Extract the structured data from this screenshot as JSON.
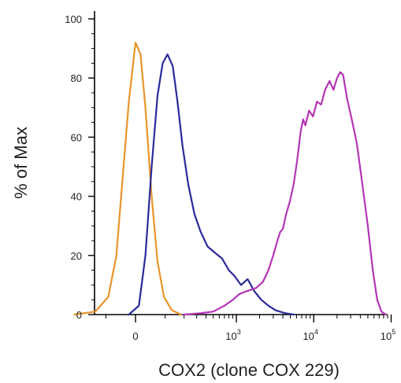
{
  "chart_data": {
    "type": "line",
    "title": "",
    "xlabel": "COX2 (clone COX 229)",
    "ylabel": "% of Max",
    "x_scale": "biexponential",
    "x_ticks": [
      {
        "value": 0,
        "base": "0",
        "exp": ""
      },
      {
        "value": 1000,
        "base": "10",
        "exp": "3"
      },
      {
        "value": 10000,
        "base": "10",
        "exp": "4"
      },
      {
        "value": 100000,
        "base": "10",
        "exp": "5"
      }
    ],
    "y_ticks": [
      0,
      20,
      40,
      60,
      80,
      100
    ],
    "ylim": [
      0,
      100
    ],
    "legend": "none",
    "series": [
      {
        "color": "#e8942a",
        "points": [
          [
            -300,
            0
          ],
          [
            -150,
            1
          ],
          [
            -90,
            6
          ],
          [
            -60,
            20
          ],
          [
            -40,
            45
          ],
          [
            -20,
            72
          ],
          [
            0,
            92
          ],
          [
            15,
            88
          ],
          [
            30,
            70
          ],
          [
            50,
            40
          ],
          [
            70,
            18
          ],
          [
            95,
            6
          ],
          [
            130,
            1.5
          ],
          [
            180,
            0
          ]
        ]
      },
      {
        "color": "#2a2a9a",
        "points": [
          [
            -20,
            0
          ],
          [
            10,
            3
          ],
          [
            30,
            20
          ],
          [
            50,
            50
          ],
          [
            70,
            74
          ],
          [
            90,
            85
          ],
          [
            110,
            88
          ],
          [
            135,
            84
          ],
          [
            160,
            72
          ],
          [
            190,
            57
          ],
          [
            230,
            44
          ],
          [
            280,
            34
          ],
          [
            340,
            28
          ],
          [
            420,
            23
          ],
          [
            520,
            21
          ],
          [
            650,
            19
          ],
          [
            800,
            15
          ],
          [
            950,
            13
          ],
          [
            1150,
            10
          ],
          [
            1400,
            12
          ],
          [
            1700,
            8
          ],
          [
            2100,
            5
          ],
          [
            2600,
            3
          ],
          [
            3200,
            1.5
          ],
          [
            4200,
            0.5
          ],
          [
            5500,
            0
          ]
        ]
      },
      {
        "color": "#b535b5",
        "points": [
          [
            200,
            0
          ],
          [
            350,
            0.5
          ],
          [
            500,
            1
          ],
          [
            700,
            3
          ],
          [
            900,
            5
          ],
          [
            1100,
            7
          ],
          [
            1400,
            8
          ],
          [
            1800,
            9
          ],
          [
            2200,
            11
          ],
          [
            2600,
            15
          ],
          [
            3000,
            20
          ],
          [
            3400,
            25
          ],
          [
            3700,
            28
          ],
          [
            4000,
            29
          ],
          [
            4400,
            34
          ],
          [
            4900,
            38
          ],
          [
            5500,
            44
          ],
          [
            6100,
            52
          ],
          [
            6800,
            62
          ],
          [
            7300,
            66
          ],
          [
            7800,
            64
          ],
          [
            8700,
            69
          ],
          [
            9800,
            67
          ],
          [
            11000,
            72
          ],
          [
            12500,
            71
          ],
          [
            14000,
            76
          ],
          [
            16000,
            79
          ],
          [
            18000,
            76
          ],
          [
            20000,
            80
          ],
          [
            22000,
            82
          ],
          [
            24000,
            81
          ],
          [
            27000,
            73
          ],
          [
            31000,
            66
          ],
          [
            36000,
            58
          ],
          [
            42000,
            45
          ],
          [
            50000,
            30
          ],
          [
            58000,
            15
          ],
          [
            66000,
            5
          ],
          [
            75000,
            1
          ],
          [
            85000,
            0
          ]
        ]
      }
    ]
  }
}
